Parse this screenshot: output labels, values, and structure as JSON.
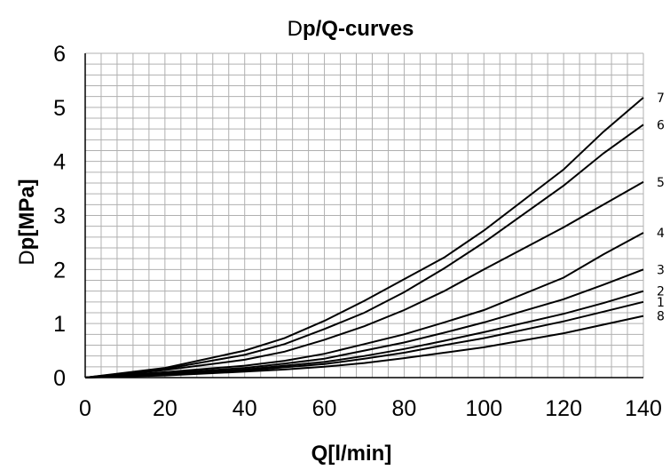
{
  "chart_data": {
    "type": "line",
    "title_prefix": "D",
    "title": "p/Q-curves",
    "xlabel": "Q[l/min]",
    "ylabel_prefix": "D",
    "ylabel": "p[MPa]",
    "xlim": [
      0,
      140
    ],
    "ylim": [
      0,
      6
    ],
    "x_ticks": [
      "0",
      "20",
      "40",
      "60",
      "80",
      "100",
      "120",
      "140"
    ],
    "y_ticks": [
      "0",
      "1",
      "2",
      "3",
      "4",
      "5",
      "6"
    ],
    "grid": true,
    "x": [
      0,
      20,
      40,
      50,
      60,
      70,
      80,
      90,
      100,
      120,
      130,
      140
    ],
    "series": [
      {
        "name": "7",
        "values": [
          0,
          0.18,
          0.5,
          0.73,
          1.05,
          1.42,
          1.82,
          2.22,
          2.72,
          3.85,
          4.55,
          5.18
        ]
      },
      {
        "name": "6",
        "values": [
          0,
          0.16,
          0.42,
          0.62,
          0.9,
          1.2,
          1.58,
          2.02,
          2.5,
          3.55,
          4.15,
          4.68
        ]
      },
      {
        "name": "5",
        "values": [
          0,
          0.14,
          0.33,
          0.48,
          0.7,
          0.95,
          1.25,
          1.6,
          2.0,
          2.78,
          3.2,
          3.62
        ]
      },
      {
        "name": "4",
        "values": [
          0,
          0.1,
          0.22,
          0.31,
          0.44,
          0.62,
          0.8,
          1.02,
          1.25,
          1.85,
          2.28,
          2.68
        ]
      },
      {
        "name": "3",
        "values": [
          0,
          0.08,
          0.18,
          0.26,
          0.35,
          0.5,
          0.65,
          0.83,
          1.02,
          1.45,
          1.72,
          2.0
        ]
      },
      {
        "name": "2",
        "values": [
          0,
          0.06,
          0.15,
          0.22,
          0.29,
          0.4,
          0.53,
          0.68,
          0.84,
          1.18,
          1.38,
          1.6
        ]
      },
      {
        "name": "1",
        "values": [
          0,
          0.05,
          0.13,
          0.19,
          0.25,
          0.35,
          0.46,
          0.6,
          0.73,
          1.04,
          1.22,
          1.4
        ]
      },
      {
        "name": "8",
        "values": [
          0,
          0.04,
          0.11,
          0.15,
          0.2,
          0.27,
          0.36,
          0.46,
          0.56,
          0.82,
          0.98,
          1.14
        ]
      }
    ]
  }
}
